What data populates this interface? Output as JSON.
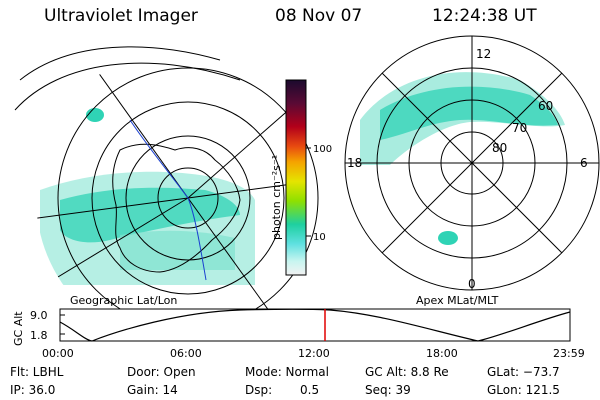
{
  "header": {
    "instrument": "Ultraviolet Imager",
    "date": "08 Nov 07",
    "time": "12:24:38 UT"
  },
  "left_panel": {
    "caption": "Geographic Lat/Lon"
  },
  "right_panel": {
    "caption": "Apex MLat/MLT",
    "mlt_labels": {
      "top": "12",
      "left": "18",
      "right": "6",
      "bottom": "0"
    },
    "lat_labels": [
      "60",
      "70",
      "80"
    ]
  },
  "colorbar": {
    "unit": "photon cm⁻²s⁻¹",
    "ticks": [
      "100",
      "10"
    ],
    "colors": [
      "#1b0a2e",
      "#5a0a34",
      "#b3001a",
      "#e84a10",
      "#f5a300",
      "#e5e400",
      "#8fe000",
      "#1ed0a0",
      "#5fe0e0",
      "#c8f5f0",
      "#f2f2f2"
    ]
  },
  "orbit_plot": {
    "ylabel": "GC Alt",
    "yticks": [
      "9.0",
      "1.8"
    ],
    "xticks": [
      "00:00",
      "06:00",
      "12:00",
      "18:00",
      "23:59"
    ],
    "marker_time": "12:24"
  },
  "footer": {
    "flt": "Flt: LBHL",
    "door": "Door: Open",
    "mode": "Mode: Normal",
    "gcalt": "GC Alt: 8.8 Re",
    "glat": "GLat: −73.7",
    "ip": "IP: 36.0",
    "gain": "Gain: 14",
    "dsp_label": "Dsp:",
    "dsp_value": "0.5",
    "seq": "Seq: 39",
    "glon": "GLon: 121.5"
  },
  "colors": {
    "aurora": "#2fd3b5",
    "aurora_light": "#a9ecdf",
    "marker": "#e00000",
    "orbit_line": "#1a3fd0"
  }
}
